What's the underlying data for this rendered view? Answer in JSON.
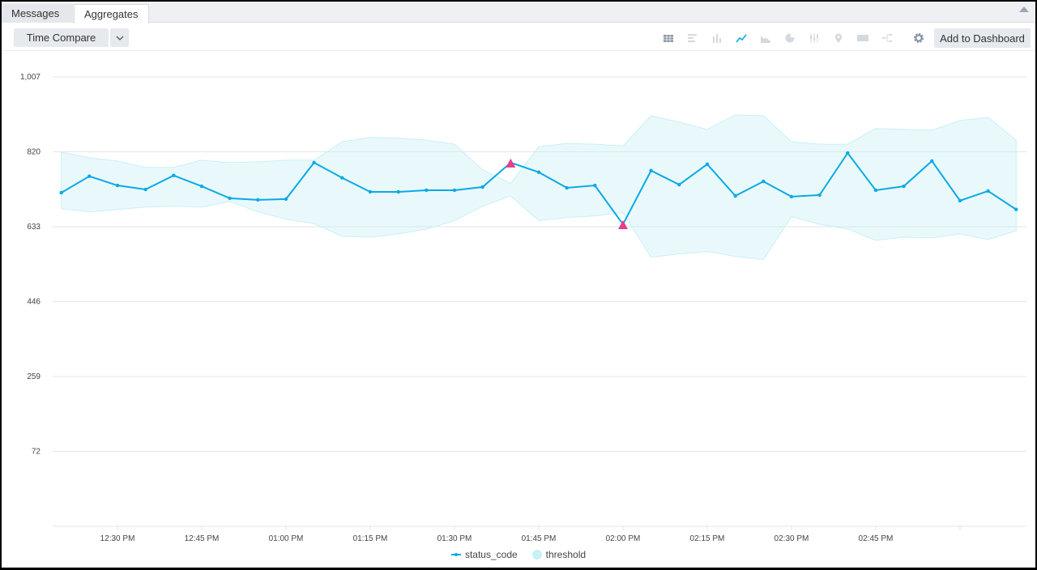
{
  "tabs": [
    {
      "label": "Messages",
      "active": false
    },
    {
      "label": "Aggregates",
      "active": true
    }
  ],
  "toolbar": {
    "time_compare_label": "Time Compare",
    "add_to_dashboard_label": "Add to Dashboard",
    "chart_type_icons": [
      "table-icon",
      "bar-horizontal-icon",
      "bar-vertical-icon",
      "line-chart-icon",
      "area-chart-icon",
      "pie-chart-icon",
      "box-plot-icon",
      "map-pin-icon",
      "single-value-icon",
      "sankey-icon"
    ],
    "selected_chart_type": "line-chart-icon"
  },
  "colors": {
    "line": "#0ba9e6",
    "band": "#c8f0f5",
    "outlier": "#e83e8c",
    "icon_inactive": "#d4d9df",
    "icon_table": "#8894a4"
  },
  "chart_data": {
    "type": "line",
    "x": [
      "12:20 PM",
      "12:25 PM",
      "12:30 PM",
      "12:35 PM",
      "12:40 PM",
      "12:45 PM",
      "12:50 PM",
      "12:55 PM",
      "01:00 PM",
      "01:05 PM",
      "01:10 PM",
      "01:15 PM",
      "01:20 PM",
      "01:25 PM",
      "01:30 PM",
      "01:35 PM",
      "01:40 PM",
      "01:45 PM",
      "01:50 PM",
      "01:55 PM",
      "02:00 PM",
      "02:05 PM",
      "02:10 PM",
      "02:15 PM",
      "02:20 PM",
      "02:25 PM",
      "02:30 PM",
      "02:35 PM",
      "02:40 PM",
      "02:45 PM",
      "02:50 PM",
      "02:55 PM",
      "03:00 PM",
      "03:05 PM",
      "03:10 PM"
    ],
    "series": [
      {
        "name": "status_code",
        "values": [
          718,
          759,
          736,
          726,
          761,
          734,
          704,
          700,
          702,
          793,
          755,
          720,
          720,
          724,
          724,
          732,
          793,
          769,
          730,
          736,
          639,
          773,
          738,
          789,
          710,
          746,
          708,
          712,
          817,
          724,
          734,
          797,
          698,
          722,
          676
        ]
      },
      {
        "name": "threshold",
        "upper": [
          819,
          805,
          797,
          781,
          781,
          799,
          793,
          795,
          799,
          799,
          845,
          856,
          854,
          849,
          839,
          775,
          741,
          833,
          841,
          839,
          835,
          910,
          894,
          876,
          912,
          910,
          845,
          839,
          839,
          878,
          876,
          874,
          898,
          906,
          849
        ],
        "lower": [
          678,
          670,
          676,
          682,
          684,
          682,
          696,
          670,
          652,
          641,
          609,
          607,
          615,
          627,
          648,
          684,
          710,
          648,
          656,
          660,
          668,
          557,
          565,
          571,
          559,
          551,
          658,
          639,
          627,
          599,
          607,
          605,
          615,
          601,
          623
        ]
      }
    ],
    "outliers": [
      {
        "x": "01:40 PM",
        "value": 793
      },
      {
        "x": "02:00 PM",
        "value": 639
      }
    ],
    "yticks": [
      1007,
      820,
      633,
      446,
      259,
      72
    ],
    "ytick_labels": [
      "1,007",
      "820",
      "633",
      "446",
      "259",
      "72"
    ],
    "xticks": [
      "12:30 PM",
      "12:45 PM",
      "01:00 PM",
      "01:15 PM",
      "01:30 PM",
      "01:45 PM",
      "02:00 PM",
      "02:15 PM",
      "02:30 PM",
      "02:45 PM",
      ""
    ],
    "xtick_times": [
      "12:30 PM",
      "12:45 PM",
      "01:00 PM",
      "01:15 PM",
      "01:30 PM",
      "01:45 PM",
      "02:00 PM",
      "02:15 PM",
      "02:30 PM",
      "02:45 PM",
      "03:00 PM"
    ],
    "ylim": [
      -115,
      1007
    ],
    "grid": true,
    "legend": "bottom-center"
  },
  "legend": {
    "items": [
      "status_code",
      "threshold"
    ]
  }
}
